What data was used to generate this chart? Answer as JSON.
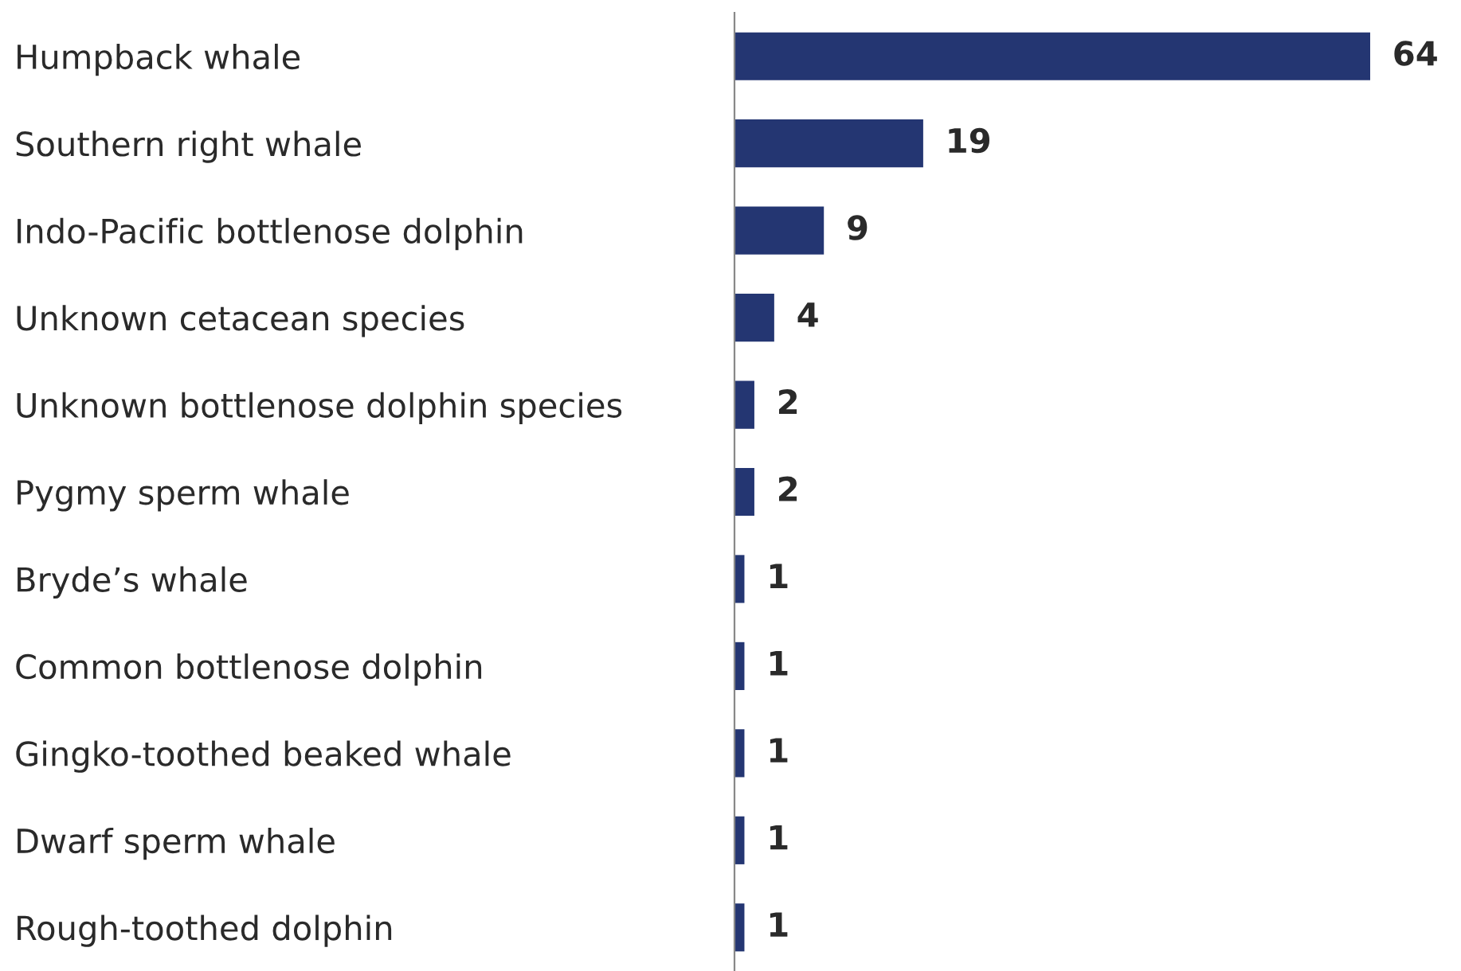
{
  "chart_data": {
    "type": "bar",
    "orientation": "horizontal",
    "categories": [
      "Humpback whale",
      "Southern right whale",
      "Indo-Pacific bottlenose dolphin",
      "Unknown cetacean species",
      "Unknown bottlenose dolphin species",
      "Pygmy sperm whale",
      "Bryde’s whale",
      "Common bottlenose dolphin",
      "Gingko-toothed beaked whale",
      "Dwarf sperm whale",
      "Rough-toothed dolphin"
    ],
    "values": [
      64,
      19,
      9,
      4,
      2,
      2,
      1,
      1,
      1,
      1,
      1
    ],
    "color": "#243672",
    "data_labels": true,
    "grid": false,
    "legend": false
  }
}
